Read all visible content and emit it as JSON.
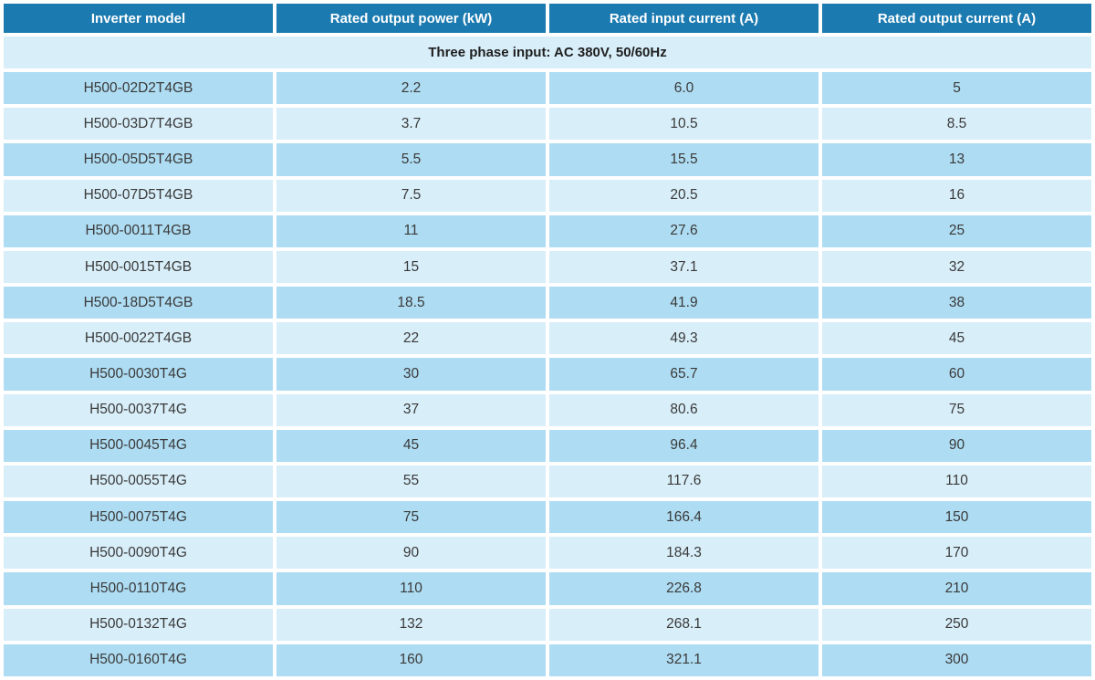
{
  "colors": {
    "header_bg": "#1b7ab0",
    "header_text": "#ffffff",
    "row_odd_bg": "#aedcf2",
    "row_even_bg": "#d8eef9",
    "cell_text": "#3a3a3a",
    "section_text": "#1f1f1f",
    "gap": "#ffffff"
  },
  "table": {
    "columns": [
      "Inverter model",
      "Rated output power (kW)",
      "Rated input current (A)",
      "Rated output current (A)"
    ],
    "section_header": "Three phase input: AC 380V, 50/60Hz",
    "rows": [
      {
        "model": "H500-02D2T4GB",
        "power_kw": "2.2",
        "input_current_a": "6.0",
        "output_current_a": "5"
      },
      {
        "model": "H500-03D7T4GB",
        "power_kw": "3.7",
        "input_current_a": "10.5",
        "output_current_a": "8.5"
      },
      {
        "model": "H500-05D5T4GB",
        "power_kw": "5.5",
        "input_current_a": "15.5",
        "output_current_a": "13"
      },
      {
        "model": "H500-07D5T4GB",
        "power_kw": "7.5",
        "input_current_a": "20.5",
        "output_current_a": "16"
      },
      {
        "model": "H500-0011T4GB",
        "power_kw": "11",
        "input_current_a": "27.6",
        "output_current_a": "25"
      },
      {
        "model": "H500-0015T4GB",
        "power_kw": "15",
        "input_current_a": "37.1",
        "output_current_a": "32"
      },
      {
        "model": "H500-18D5T4GB",
        "power_kw": "18.5",
        "input_current_a": "41.9",
        "output_current_a": "38"
      },
      {
        "model": "H500-0022T4GB",
        "power_kw": "22",
        "input_current_a": "49.3",
        "output_current_a": "45"
      },
      {
        "model": "H500-0030T4G",
        "power_kw": "30",
        "input_current_a": "65.7",
        "output_current_a": "60"
      },
      {
        "model": "H500-0037T4G",
        "power_kw": "37",
        "input_current_a": "80.6",
        "output_current_a": "75"
      },
      {
        "model": "H500-0045T4G",
        "power_kw": "45",
        "input_current_a": "96.4",
        "output_current_a": "90"
      },
      {
        "model": "H500-0055T4G",
        "power_kw": "55",
        "input_current_a": "117.6",
        "output_current_a": "110"
      },
      {
        "model": "H500-0075T4G",
        "power_kw": "75",
        "input_current_a": "166.4",
        "output_current_a": "150"
      },
      {
        "model": "H500-0090T4G",
        "power_kw": "90",
        "input_current_a": "184.3",
        "output_current_a": "170"
      },
      {
        "model": "H500-0110T4G",
        "power_kw": "110",
        "input_current_a": "226.8",
        "output_current_a": "210"
      },
      {
        "model": "H500-0132T4G",
        "power_kw": "132",
        "input_current_a": "268.1",
        "output_current_a": "250"
      },
      {
        "model": "H500-0160T4G",
        "power_kw": "160",
        "input_current_a": "321.1",
        "output_current_a": "300"
      }
    ]
  }
}
